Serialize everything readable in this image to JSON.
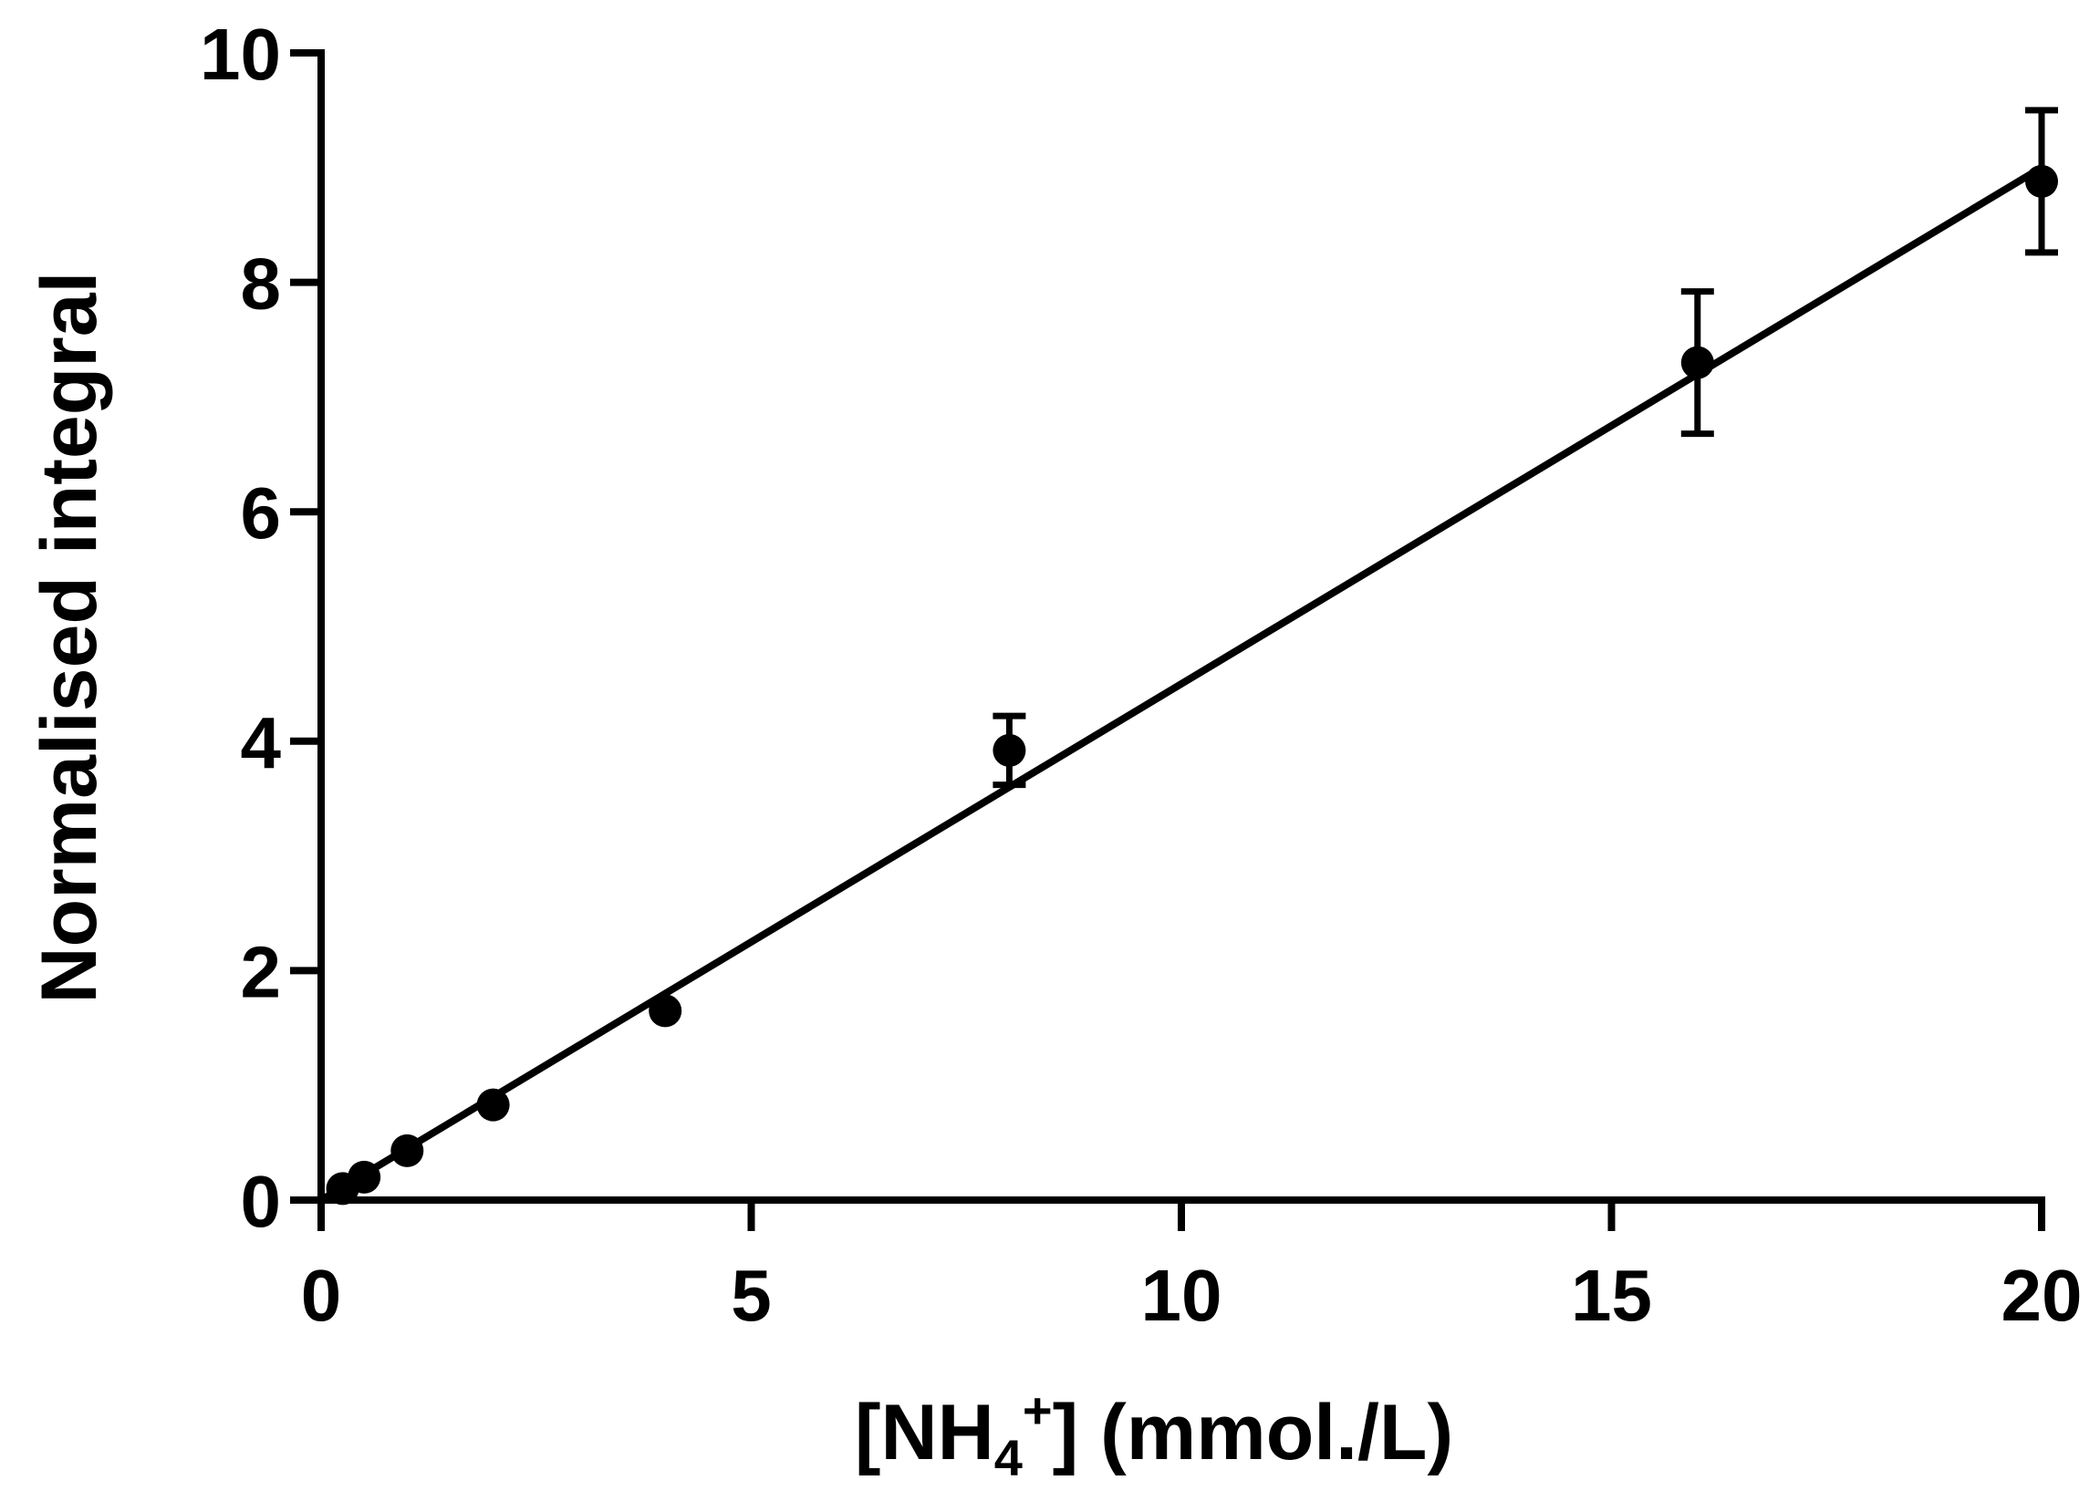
{
  "chart_data": {
    "type": "scatter",
    "xlabel": {
      "prefix": "[NH",
      "subscript": "4",
      "superscript": "+",
      "suffix": "] (mmol./L)"
    },
    "ylabel": "Normalised integral",
    "xlim": [
      0,
      20
    ],
    "ylim": [
      0,
      10
    ],
    "x_ticks": [
      0,
      5,
      10,
      15,
      20
    ],
    "y_ticks": [
      0,
      2,
      4,
      6,
      8,
      10
    ],
    "x_tick_labels": [
      "0",
      "5",
      "10",
      "15",
      "20"
    ],
    "y_tick_labels": [
      "0",
      "2",
      "4",
      "6",
      "8",
      "10"
    ],
    "grid": false,
    "series": [
      {
        "points": [
          {
            "x": 0.25,
            "y": 0.1,
            "err": 0
          },
          {
            "x": 0.5,
            "y": 0.2,
            "err": 0
          },
          {
            "x": 1,
            "y": 0.43,
            "err": 0
          },
          {
            "x": 2,
            "y": 0.83,
            "err": 0
          },
          {
            "x": 4,
            "y": 1.65,
            "err": 0
          },
          {
            "x": 8,
            "y": 3.92,
            "err": 0.3
          },
          {
            "x": 16,
            "y": 7.3,
            "err": 0.62
          },
          {
            "x": 20,
            "y": 8.88,
            "err": 0.62
          }
        ]
      }
    ],
    "fit_line": {
      "x": [
        0,
        20
      ],
      "y": [
        0,
        9.0
      ]
    },
    "colors": {
      "marks": "#000000",
      "background": "#ffffff"
    }
  }
}
